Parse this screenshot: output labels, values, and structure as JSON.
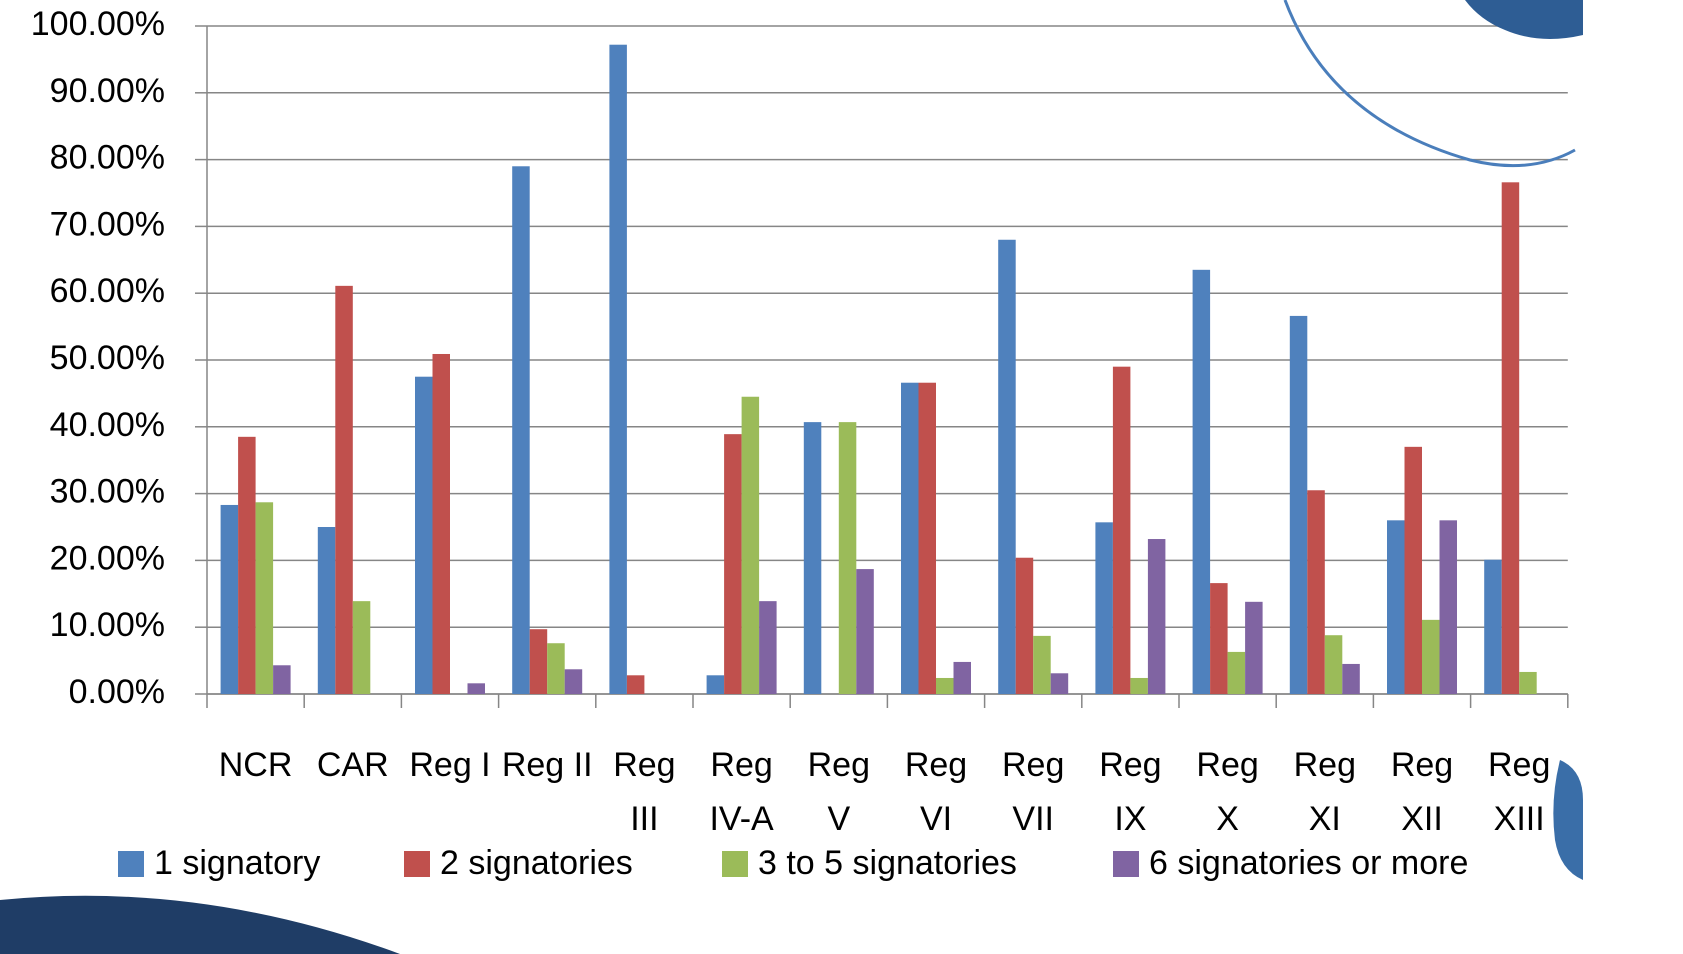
{
  "chart_data": {
    "type": "bar",
    "categories": [
      "NCR",
      "CAR",
      "Reg I",
      "Reg II",
      "Reg III",
      "Reg IV-A",
      "Reg V",
      "Reg VI",
      "Reg VII",
      "Reg IX",
      "Reg X",
      "Reg XI",
      "Reg XII",
      "Reg XIII"
    ],
    "series": [
      {
        "name": "1 signatory",
        "color": "#4f81bd",
        "values": [
          28.3,
          25.0,
          47.5,
          79.0,
          97.2,
          2.8,
          40.7,
          46.6,
          68.0,
          25.7,
          63.5,
          56.6,
          26.0,
          20.1
        ]
      },
      {
        "name": "2 signatories",
        "color": "#c0504d",
        "values": [
          38.5,
          61.1,
          50.9,
          9.7,
          2.8,
          38.9,
          0,
          46.6,
          20.4,
          49.0,
          16.6,
          30.5,
          37.0,
          76.6
        ]
      },
      {
        "name": "3 to 5 signatories",
        "color": "#9bbb59",
        "values": [
          28.7,
          13.9,
          0,
          7.6,
          0,
          44.5,
          40.7,
          2.4,
          8.7,
          2.4,
          6.3,
          8.8,
          11.1,
          3.3
        ]
      },
      {
        "name": "6 signatories or more",
        "color": "#8064a2",
        "values": [
          4.3,
          0,
          1.6,
          3.7,
          0,
          13.9,
          18.7,
          4.8,
          3.1,
          23.2,
          13.8,
          4.5,
          26.0,
          0
        ]
      }
    ],
    "ylim": [
      0,
      100
    ],
    "yticks": [
      {
        "value": 0,
        "label": "0.00%"
      },
      {
        "value": 10,
        "label": "10.00%"
      },
      {
        "value": 20,
        "label": "20.00%"
      },
      {
        "value": 30,
        "label": "30.00%"
      },
      {
        "value": 40,
        "label": "40.00%"
      },
      {
        "value": 50,
        "label": "50.00%"
      },
      {
        "value": 60,
        "label": "60.00%"
      },
      {
        "value": 70,
        "label": "70.00%"
      },
      {
        "value": 80,
        "label": "80.00%"
      },
      {
        "value": 90,
        "label": "90.00%"
      },
      {
        "value": 100,
        "label": "100.00%"
      }
    ],
    "grid": true,
    "legend": "bottom"
  }
}
